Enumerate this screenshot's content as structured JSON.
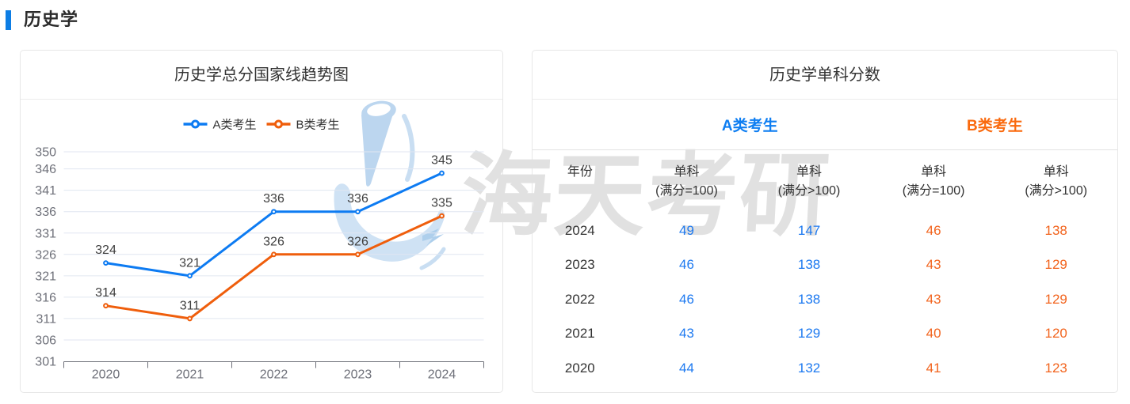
{
  "page": {
    "section_title": "历史学"
  },
  "colors": {
    "accent_bar": "#0d7de4",
    "chart_blue": "#0d7bf2",
    "chart_orange": "#ef5e0c",
    "header_blue": "#0e7ef2",
    "header_orange": "#fa6a0e",
    "value_blue": "#1d79f0",
    "value_orange": "#f2641e",
    "grid_line": "#e0e6f1",
    "axis_line": "#6e7079"
  },
  "trend_card": {
    "title": "历史学总分国家线趋势图"
  },
  "chart_data": {
    "type": "line",
    "title": "历史学总分国家线趋势图",
    "categories": [
      "2020",
      "2021",
      "2022",
      "2023",
      "2024"
    ],
    "series": [
      {
        "name": "A类考生",
        "color": "#0d7bf2",
        "values": [
          324,
          321,
          336,
          336,
          345
        ]
      },
      {
        "name": "B类考生",
        "color": "#ef5e0c",
        "values": [
          314,
          311,
          326,
          326,
          335
        ]
      }
    ],
    "y_axis_labels": [
      350,
      346,
      341,
      336,
      331,
      326,
      321,
      316,
      311,
      306,
      301
    ],
    "ylim": [
      301,
      350
    ],
    "xlabel": "",
    "ylabel": "",
    "grid": true,
    "legend_position": "top",
    "data_labels": true
  },
  "table_card": {
    "title": "历史学单科分数",
    "group_headers": [
      {
        "label": "A类考生"
      },
      {
        "label": "B类考生"
      }
    ],
    "columns": [
      {
        "line1": "年份",
        "line2": ""
      },
      {
        "line1": "单科",
        "line2": "(满分=100)"
      },
      {
        "line1": "单科",
        "line2": "(满分>100)"
      },
      {
        "line1": "单科",
        "line2": "(满分=100)"
      },
      {
        "line1": "单科",
        "line2": "(满分>100)"
      }
    ],
    "rows": [
      {
        "year": "2024",
        "values": [
          "49",
          "147",
          "46",
          "138"
        ]
      },
      {
        "year": "2023",
        "values": [
          "46",
          "138",
          "43",
          "129"
        ]
      },
      {
        "year": "2022",
        "values": [
          "46",
          "138",
          "43",
          "129"
        ]
      },
      {
        "year": "2021",
        "values": [
          "43",
          "129",
          "40",
          "120"
        ]
      },
      {
        "year": "2020",
        "values": [
          "44",
          "132",
          "41",
          "123"
        ]
      }
    ]
  },
  "watermark": {
    "text": "海天考研",
    "logo": "haitian-kaoyan-logo"
  }
}
